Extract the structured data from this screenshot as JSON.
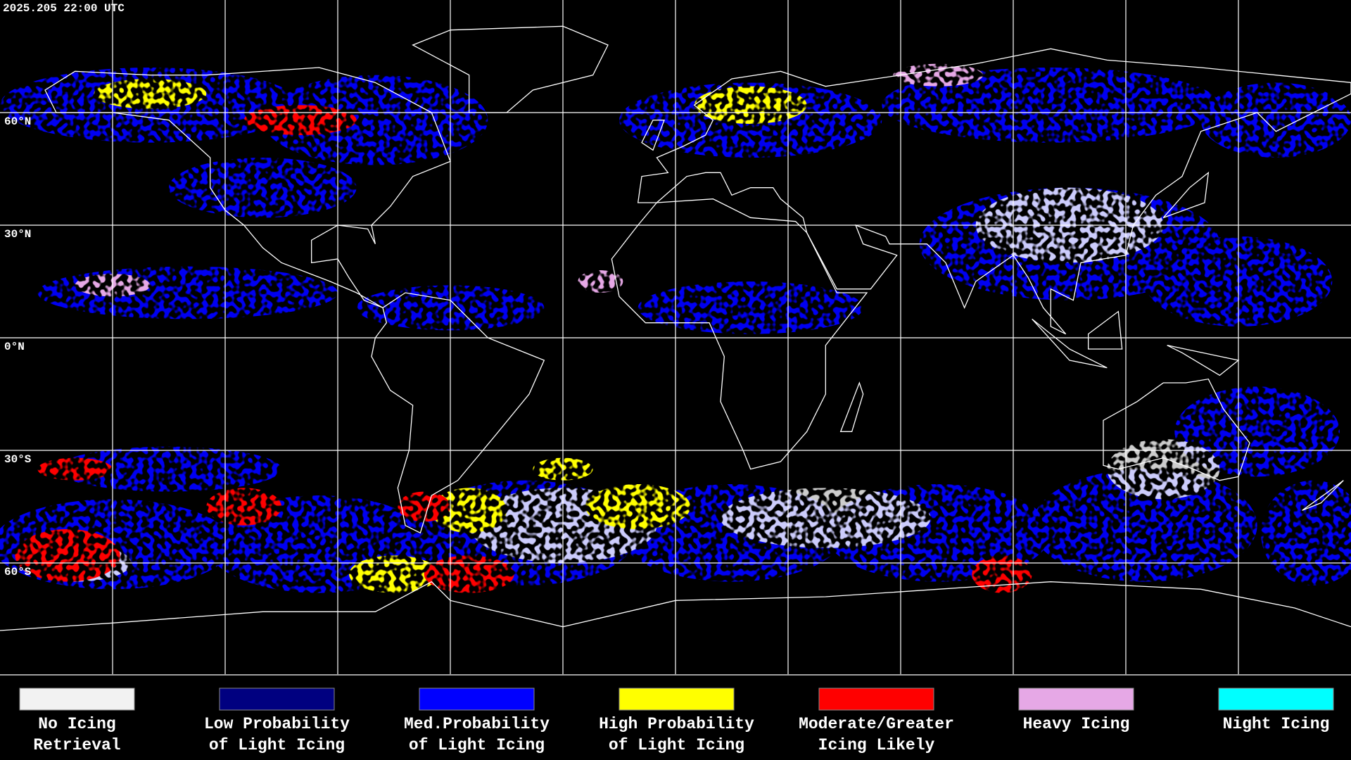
{
  "timestamp": "2025.205 22:00 UTC",
  "lat_labels": [
    "60°N",
    "30°N",
    "0°N",
    "30°S",
    "60°S"
  ],
  "legend": [
    {
      "label": [
        "No Icing",
        "Retrieval"
      ],
      "color": "#f2f2f2"
    },
    {
      "label": [
        "Low Probability",
        "of Light Icing"
      ],
      "color": "#000080"
    },
    {
      "label": [
        "Med.Probability",
        "of Light Icing"
      ],
      "color": "#0000ff"
    },
    {
      "label": [
        "High Probability",
        "of Light Icing"
      ],
      "color": "#ffff00"
    },
    {
      "label": [
        "Moderate/Greater",
        "Icing Likely"
      ],
      "color": "#ff0000"
    },
    {
      "label": [
        "Heavy Icing"
      ],
      "color": "#e6a8e6"
    },
    {
      "label": [
        "Night Icing"
      ],
      "color": "#00ffff"
    }
  ]
}
